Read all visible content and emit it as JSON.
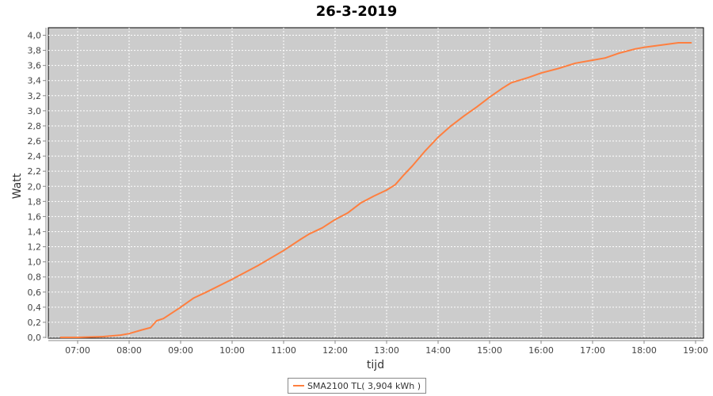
{
  "chart_data": {
    "type": "line",
    "title": "26-3-2019",
    "xlabel": "tijd",
    "ylabel": "Watt",
    "ylim": [
      0,
      4.0
    ],
    "xlim": [
      "06:25",
      "19:10"
    ],
    "yticks": [
      "0,0",
      "0,2",
      "0,4",
      "0,6",
      "0,8",
      "1,0",
      "1,2",
      "1,4",
      "1,6",
      "1,8",
      "2,0",
      "2,2",
      "2,4",
      "2,6",
      "2,8",
      "3,0",
      "3,2",
      "3,4",
      "3,6",
      "3,8",
      "4,0"
    ],
    "xticks": [
      "07:00",
      "08:00",
      "09:00",
      "10:00",
      "11:00",
      "12:00",
      "13:00",
      "14:00",
      "15:00",
      "16:00",
      "17:00",
      "18:00",
      "19:00"
    ],
    "grid": true,
    "legend_placement": "bottom",
    "colors": {
      "line": "#ff7f3f",
      "plot_bg": "#cccccc",
      "grid": "#ffffff"
    },
    "series": [
      {
        "name": "SMA2100 TL( 3,904 kWh )",
        "x": [
          "06:40",
          "07:00",
          "07:30",
          "07:50",
          "08:00",
          "08:15",
          "08:25",
          "08:32",
          "08:40",
          "09:00",
          "09:15",
          "09:30",
          "10:00",
          "10:30",
          "11:00",
          "11:20",
          "11:30",
          "11:45",
          "12:00",
          "12:15",
          "12:30",
          "12:45",
          "13:00",
          "13:10",
          "13:20",
          "13:30",
          "13:45",
          "14:00",
          "14:15",
          "14:30",
          "14:45",
          "15:00",
          "15:15",
          "15:25",
          "15:45",
          "16:00",
          "16:20",
          "16:40",
          "17:00",
          "17:15",
          "17:30",
          "17:50",
          "18:00",
          "18:20",
          "18:40",
          "18:55"
        ],
        "y": [
          0,
          0,
          0.01,
          0.03,
          0.05,
          0.1,
          0.13,
          0.22,
          0.25,
          0.4,
          0.52,
          0.6,
          0.77,
          0.95,
          1.15,
          1.3,
          1.37,
          1.45,
          1.56,
          1.65,
          1.78,
          1.87,
          1.95,
          2.02,
          2.15,
          2.27,
          2.47,
          2.65,
          2.8,
          2.93,
          3.05,
          3.18,
          3.3,
          3.37,
          3.44,
          3.5,
          3.56,
          3.63,
          3.67,
          3.7,
          3.76,
          3.82,
          3.84,
          3.87,
          3.9,
          3.9
        ]
      }
    ]
  }
}
